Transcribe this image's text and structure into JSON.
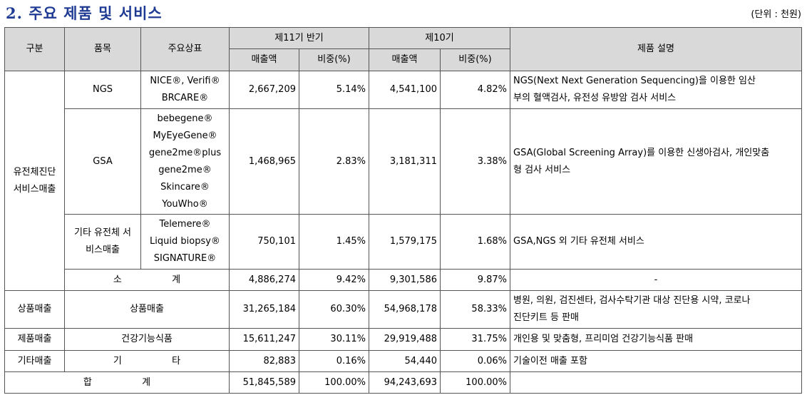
{
  "title": "2. 주요 제품 및 서비스",
  "unit": "(단위 : 천원)",
  "headers": {
    "category": "구분",
    "item": "품목",
    "brand": "주요상표",
    "period1": "제11기 반기",
    "period2": "제10기",
    "sales": "매출액",
    "ratio": "비중(%)",
    "desc": "제품 설명"
  },
  "rows": {
    "genetic_group": "유전체진단\n서비스매출",
    "ngs": {
      "item": "NGS",
      "brands": [
        "NICE®, Verifi®",
        "BRCARE®"
      ],
      "s1": "2,667,209",
      "r1": "5.14%",
      "s2": "4,541,100",
      "r2": "4.82%",
      "desc": [
        "NGS(Next Next Generation Sequencing)을 이용한 임산",
        "부의 혈액검사, 유전성 유방암 검사 서비스"
      ]
    },
    "gsa": {
      "item": "GSA",
      "brands": [
        "bebegene®",
        "MyEyeGene®",
        "gene2me®plus",
        "gene2me®",
        "Skincare®",
        "YouWho®"
      ],
      "s1": "1,468,965",
      "r1": "2.83%",
      "s2": "3,181,311",
      "r2": "3.38%",
      "desc": [
        "GSA(Global Screening Array)를 이용한 신생아검사, 개인맞춤",
        "형 검사 서비스"
      ]
    },
    "other_genetic": {
      "item": [
        "기타 유전체 서",
        "비스매출"
      ],
      "brands": [
        "Telemere®",
        "Liquid biopsy®",
        "SIGNATURE®"
      ],
      "s1": "750,101",
      "r1": "1.45%",
      "s2": "1,579,175",
      "r2": "1.68%",
      "desc": "GSA,NGS 외 기타 유전체 서비스"
    },
    "subtotal": {
      "label_a": "소",
      "label_b": "계",
      "s1": "4,886,274",
      "r1": "9.42%",
      "s2": "9,301,586",
      "r2": "9.87%",
      "desc": "-"
    },
    "merch": {
      "category": "상품매출",
      "item": "상품매출",
      "s1": "31,265,184",
      "r1": "60.30%",
      "s2": "54,968,178",
      "r2": "58.33%",
      "desc": [
        "병원, 의원, 검진센타, 검사수탁기관 대상 진단용 시약, 코로나",
        "진단키트 등 판매"
      ]
    },
    "product": {
      "category": "제품매출",
      "item": "건강기능식품",
      "s1": "15,611,247",
      "r1": "30.11%",
      "s2": "29,919,488",
      "r2": "31.75%",
      "desc": "개인용 및 맞춤형, 프리미엄 건강기능식품 판매"
    },
    "etc": {
      "category": "기타매출",
      "label_a": "기",
      "label_b": "타",
      "s1": "82,883",
      "r1": "0.16%",
      "s2": "54,440",
      "r2": "0.06%",
      "desc": "기술이전 매출 포함"
    },
    "total": {
      "label_a": "합",
      "label_b": "계",
      "s1": "51,845,589",
      "r1": "100.00%",
      "s2": "94,243,693",
      "r2": "100.00%",
      "desc": ""
    }
  }
}
